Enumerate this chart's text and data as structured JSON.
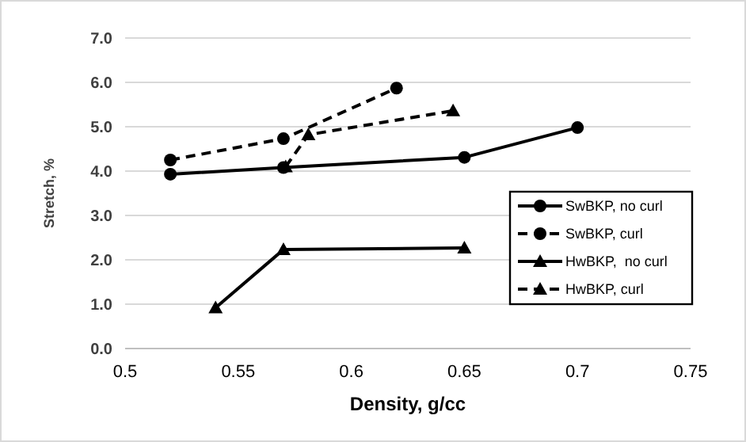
{
  "chart_data": {
    "type": "line",
    "xlabel": "Density, g/cc",
    "ylabel": "Stretch, %",
    "xlim": [
      0.5,
      0.75
    ],
    "xticks": [
      0.5,
      0.55,
      0.6,
      0.65,
      0.7,
      0.75
    ],
    "ylim": [
      0,
      7
    ],
    "yticks": [
      {
        "value": 0,
        "label": "0.0"
      },
      {
        "value": 1,
        "label": "1.0"
      },
      {
        "value": 2,
        "label": "2.0"
      },
      {
        "value": 3,
        "label": "3.0"
      },
      {
        "value": 4,
        "label": "4.0"
      },
      {
        "value": 5,
        "label": "5.0"
      },
      {
        "value": 6,
        "label": "6.0"
      },
      {
        "value": 7,
        "label": "7.0"
      }
    ],
    "grid": "y",
    "legend": "right",
    "series": [
      {
        "name": "SwBKP, no curl",
        "color": "#000000",
        "marker": "circle",
        "line_style": "solid",
        "x": [
          0.52,
          0.57,
          0.65,
          0.7
        ],
        "values": [
          3.93,
          4.08,
          4.31,
          4.98
        ]
      },
      {
        "name": "SwBKP, curl",
        "color": "#000000",
        "marker": "circle",
        "line_style": "dashed",
        "x": [
          0.52,
          0.57,
          0.62
        ],
        "values": [
          4.25,
          4.73,
          5.87
        ]
      },
      {
        "name": "HwBKP,  no curl",
        "color": "#000000",
        "marker": "triangle",
        "line_style": "solid",
        "x": [
          0.54,
          0.57,
          0.65
        ],
        "values": [
          0.92,
          2.23,
          2.27
        ]
      },
      {
        "name": "HwBKP, curl",
        "color": "#000000",
        "marker": "triangle",
        "line_style": "dashed",
        "x": [
          0.571,
          0.581,
          0.645
        ],
        "values": [
          4.1,
          4.82,
          5.36
        ]
      }
    ]
  }
}
